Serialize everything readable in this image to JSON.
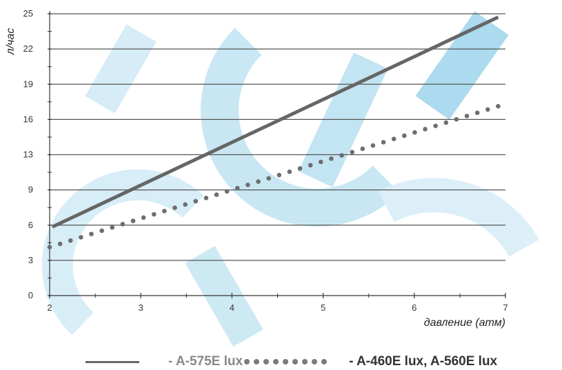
{
  "chart_data": {
    "type": "line",
    "title": "",
    "xlabel": "давление (атм)",
    "ylabel": "л/час",
    "xlim": [
      2,
      7
    ],
    "ylim": [
      0,
      25
    ],
    "x_ticks": [
      "2",
      "3",
      "4",
      "5",
      "6",
      "7"
    ],
    "y_ticks": [
      "0",
      "3",
      "6",
      "9",
      "13",
      "16",
      "19",
      "22",
      "25"
    ],
    "grid": true,
    "legend_position": "bottom",
    "series": [
      {
        "name": "- A-575E lux",
        "style": "solid",
        "color": "#666666",
        "x": [
          2.03,
          6.92
        ],
        "y": [
          6.1,
          24.7
        ]
      },
      {
        "name": "- A-460E lux, A-560E lux",
        "style": "dotted",
        "color": "#6e6e6e",
        "x": [
          2.0,
          6.92
        ],
        "y": [
          4.3,
          16.8
        ]
      }
    ]
  }
}
